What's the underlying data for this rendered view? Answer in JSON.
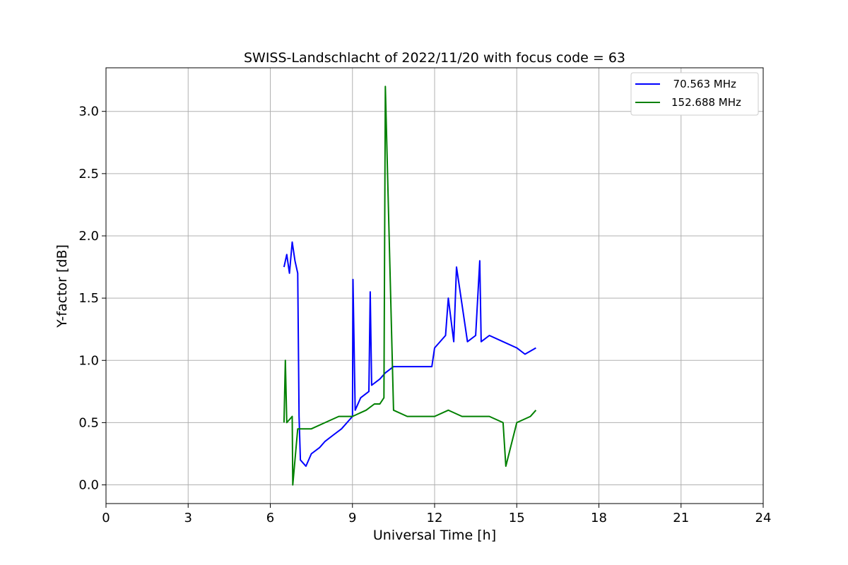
{
  "chart_data": {
    "type": "line",
    "title": "SWISS-Landschlacht of 2022/11/20 with focus code = 63",
    "xlabel": "Universal Time [h]",
    "ylabel": "Y-factor [dB]",
    "xlim": [
      0,
      24
    ],
    "ylim": [
      -0.15,
      3.35
    ],
    "xticks": [
      0,
      3,
      6,
      9,
      12,
      15,
      18,
      21,
      24
    ],
    "xtick_labels": [
      "0",
      "3",
      "6",
      "9",
      "12",
      "15",
      "18",
      "21",
      "24"
    ],
    "yticks": [
      0.0,
      0.5,
      1.0,
      1.5,
      2.0,
      2.5,
      3.0
    ],
    "ytick_labels": [
      "0.0",
      "0.5",
      "1.0",
      "1.5",
      "2.0",
      "2.5",
      "3.0"
    ],
    "grid": true,
    "legend_position": "top-right",
    "series": [
      {
        "name": "  70.563 MHz",
        "color": "#0000ff",
        "x": [
          6.5,
          6.6,
          6.7,
          6.8,
          6.9,
          7.0,
          7.05,
          7.1,
          7.3,
          7.5,
          7.8,
          8.0,
          8.3,
          8.6,
          9.0,
          9.02,
          9.1,
          9.3,
          9.6,
          9.65,
          9.7,
          10.0,
          10.2,
          10.5,
          11.0,
          11.5,
          11.9,
          12.0,
          12.4,
          12.5,
          12.7,
          12.8,
          13.2,
          13.5,
          13.65,
          13.7,
          14.0,
          14.5,
          15.0,
          15.3,
          15.7
        ],
        "y": [
          1.75,
          1.85,
          1.7,
          1.95,
          1.8,
          1.7,
          0.55,
          0.2,
          0.15,
          0.25,
          0.3,
          0.35,
          0.4,
          0.45,
          0.55,
          1.65,
          0.6,
          0.7,
          0.75,
          1.55,
          0.8,
          0.85,
          0.9,
          0.95,
          0.95,
          0.95,
          0.95,
          1.1,
          1.2,
          1.5,
          1.15,
          1.75,
          1.15,
          1.2,
          1.8,
          1.15,
          1.2,
          1.15,
          1.1,
          1.05,
          1.1
        ]
      },
      {
        "name": "152.688 MHz",
        "color": "#008000",
        "x": [
          6.5,
          6.55,
          6.6,
          6.8,
          6.82,
          7.0,
          7.5,
          8.0,
          8.5,
          9.0,
          9.5,
          9.8,
          10.0,
          10.15,
          10.2,
          10.5,
          11.0,
          11.5,
          12.0,
          12.5,
          13.0,
          13.5,
          14.0,
          14.5,
          14.6,
          15.0,
          15.5,
          15.7
        ],
        "y": [
          0.5,
          1.0,
          0.5,
          0.55,
          0.0,
          0.45,
          0.45,
          0.5,
          0.55,
          0.55,
          0.6,
          0.65,
          0.65,
          0.7,
          3.2,
          0.6,
          0.55,
          0.55,
          0.55,
          0.6,
          0.55,
          0.55,
          0.55,
          0.5,
          0.15,
          0.5,
          0.55,
          0.6
        ]
      }
    ]
  }
}
